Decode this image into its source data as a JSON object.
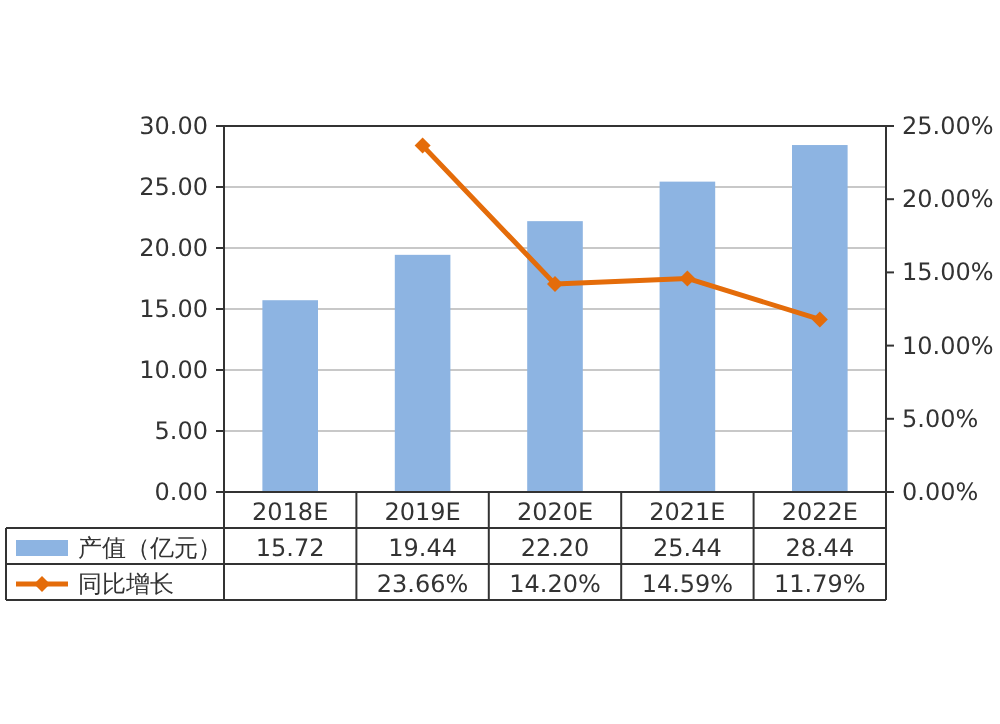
{
  "chart_data": {
    "type": "bar",
    "categories": [
      "2018E",
      "2019E",
      "2020E",
      "2021E",
      "2022E"
    ],
    "series": [
      {
        "name": "产值（亿元）",
        "color": "#8db4e2",
        "values": [
          15.72,
          19.44,
          22.2,
          25.44,
          28.44
        ],
        "value_labels": [
          "15.72",
          "19.44",
          "22.20",
          "25.44",
          "28.44"
        ]
      },
      {
        "name": "同比增长",
        "type": "line",
        "axis": "y2",
        "color": "#e46c0a",
        "marker": "diamond",
        "values": [
          null,
          23.66,
          14.2,
          14.59,
          11.79
        ],
        "value_labels": [
          null,
          "23.66%",
          "14.20%",
          "14.59%",
          "11.79%"
        ]
      }
    ],
    "ylim": [
      0,
      30
    ],
    "yticks": [
      {
        "value": 0,
        "label": "0.00"
      },
      {
        "value": 5,
        "label": "5.00"
      },
      {
        "value": 10,
        "label": "10.00"
      },
      {
        "value": 15,
        "label": "15.00"
      },
      {
        "value": 20,
        "label": "20.00"
      },
      {
        "value": 25,
        "label": "25.00"
      },
      {
        "value": 30,
        "label": "30.00"
      }
    ],
    "y2lim": [
      0,
      25
    ],
    "y2ticks": [
      {
        "value": 0,
        "label": "0.00%"
      },
      {
        "value": 5,
        "label": "5.00%"
      },
      {
        "value": 10,
        "label": "10.00%"
      },
      {
        "value": 15,
        "label": "15.00%"
      },
      {
        "value": 20,
        "label": "20.00%"
      },
      {
        "value": 25,
        "label": "25.00%"
      }
    ],
    "grid": "y",
    "legend": "bottom left"
  }
}
